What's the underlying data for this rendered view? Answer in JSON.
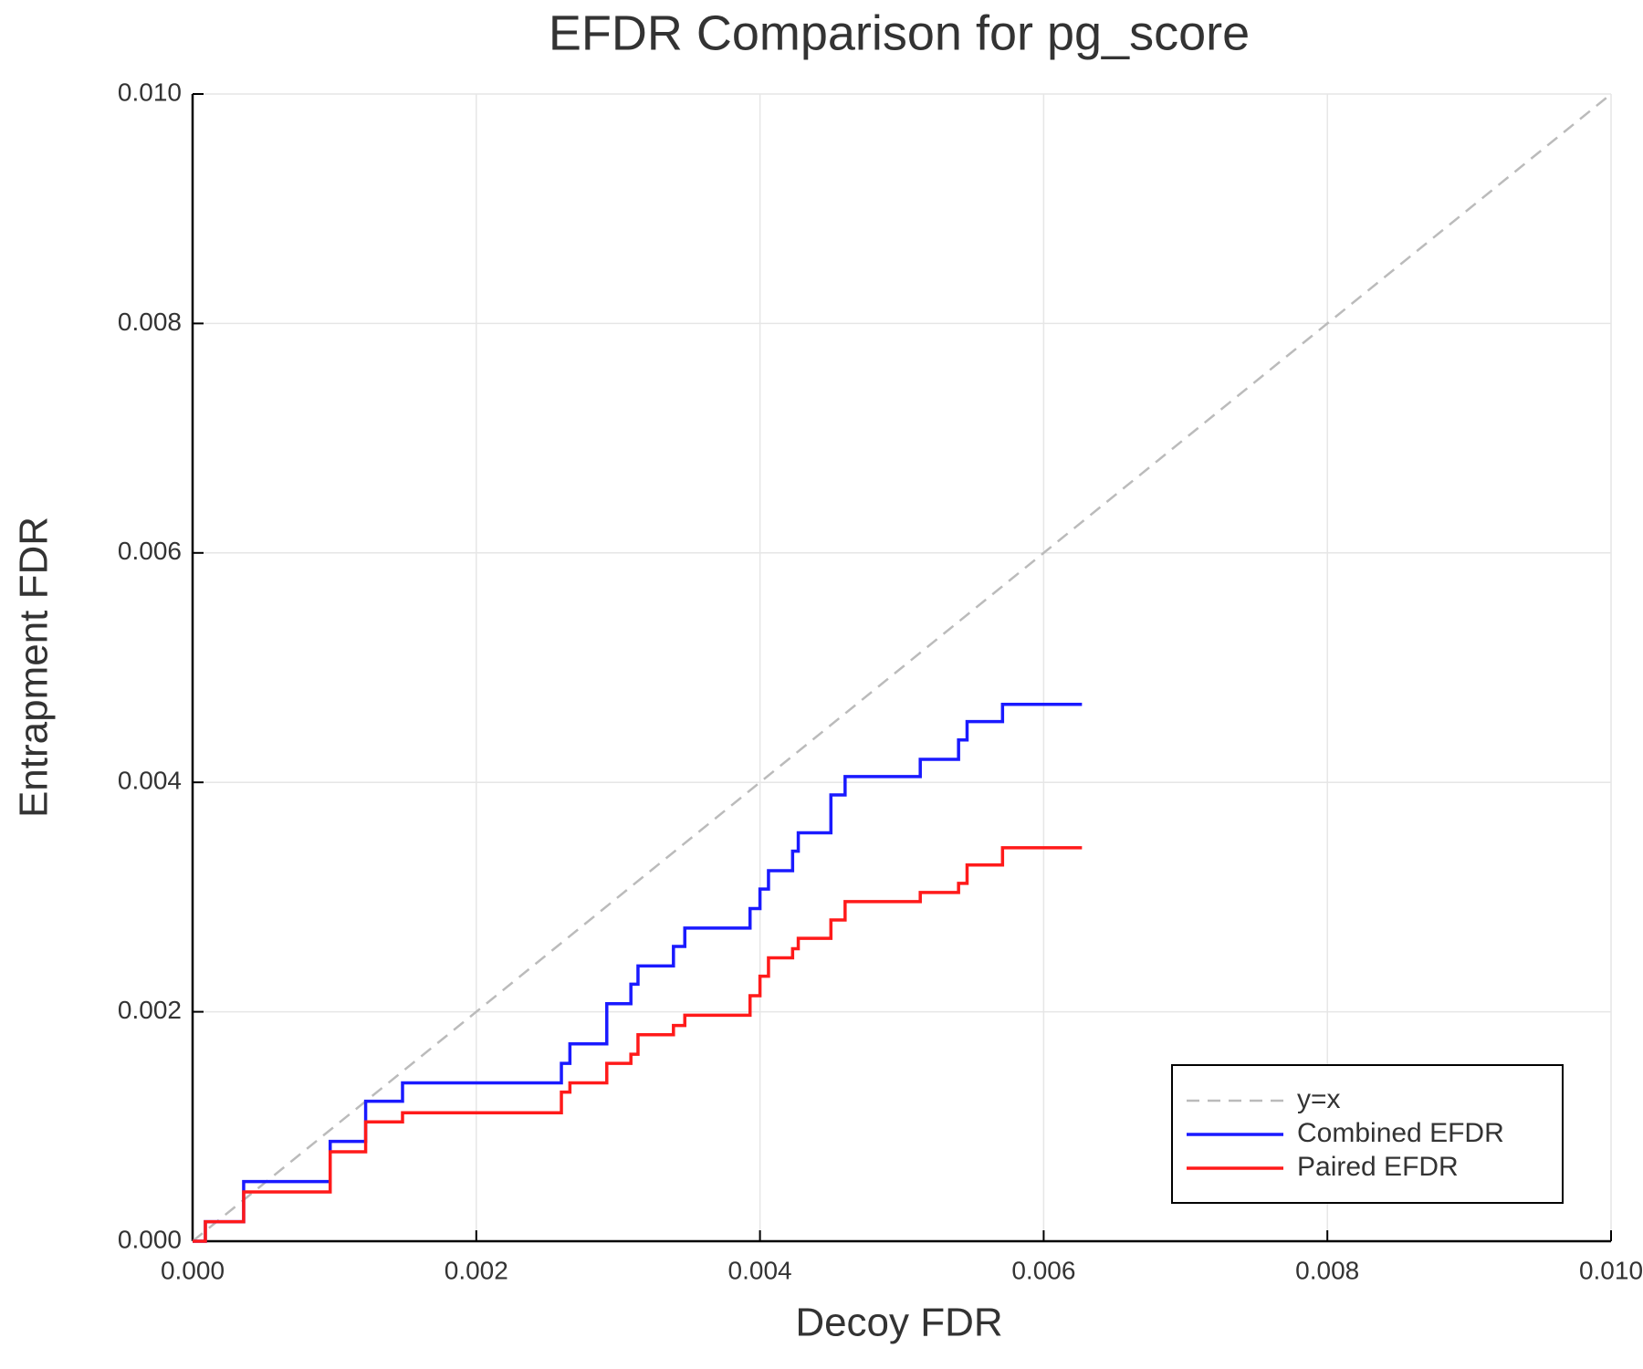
{
  "chart_data": {
    "type": "line",
    "title": "EFDR Comparison for pg_score",
    "x_label": "Decoy FDR",
    "y_label": "Entrapment FDR",
    "xlim": [
      0,
      0.01
    ],
    "ylim": [
      0,
      0.01
    ],
    "xticks": [
      {
        "value": 0,
        "label": "0.000"
      },
      0.002,
      0.004,
      0.006,
      0.008,
      {
        "value": 0.01,
        "label": "0.010"
      }
    ],
    "yticks": [
      {
        "value": 0,
        "label": "0.000"
      },
      0.002,
      0.004,
      0.006,
      0.008,
      {
        "value": 0.01,
        "label": "0.010"
      }
    ],
    "grid": true,
    "legend": "lower right",
    "series": [
      {
        "name": "y=x",
        "color": "#bbbbbb",
        "dashed": true,
        "x": [
          0,
          0.01
        ],
        "values": [
          0,
          0.01
        ]
      },
      {
        "name": "Combined EFDR",
        "color": "#1a1aff",
        "step": "post",
        "x": [
          0,
          9e-05,
          0.00036,
          0.00097,
          0.00122,
          0.00148,
          0.0026,
          0.00266,
          0.00292,
          0.00309,
          0.00314,
          0.00339,
          0.00347,
          0.00393,
          0.004,
          0.00406,
          0.00423,
          0.00427,
          0.0045,
          0.0046,
          0.00513,
          0.0054,
          0.00546,
          0.00571,
          0.00627
        ],
        "values": [
          0,
          0.00017,
          0.00052,
          0.00087,
          0.00122,
          0.00138,
          0.00155,
          0.00172,
          0.00207,
          0.00224,
          0.0024,
          0.00257,
          0.00273,
          0.0029,
          0.00307,
          0.00323,
          0.0034,
          0.00356,
          0.00389,
          0.00405,
          0.0042,
          0.00437,
          0.00453,
          0.00468,
          0.00468
        ]
      },
      {
        "name": "Paired EFDR",
        "color": "#ff1a1a",
        "step": "post",
        "x": [
          0,
          9e-05,
          0.00036,
          0.00097,
          0.00122,
          0.00148,
          0.0026,
          0.00266,
          0.00292,
          0.00309,
          0.00314,
          0.00339,
          0.00347,
          0.00393,
          0.004,
          0.00406,
          0.00423,
          0.00427,
          0.0045,
          0.0046,
          0.00513,
          0.0054,
          0.00546,
          0.00571,
          0.00627
        ],
        "values": [
          0,
          0.00017,
          0.00043,
          0.00078,
          0.00104,
          0.00112,
          0.0013,
          0.00138,
          0.00155,
          0.00163,
          0.0018,
          0.00188,
          0.00197,
          0.00214,
          0.00231,
          0.00247,
          0.00255,
          0.00264,
          0.0028,
          0.00296,
          0.00304,
          0.00312,
          0.00328,
          0.00343,
          0.00343
        ]
      }
    ]
  }
}
